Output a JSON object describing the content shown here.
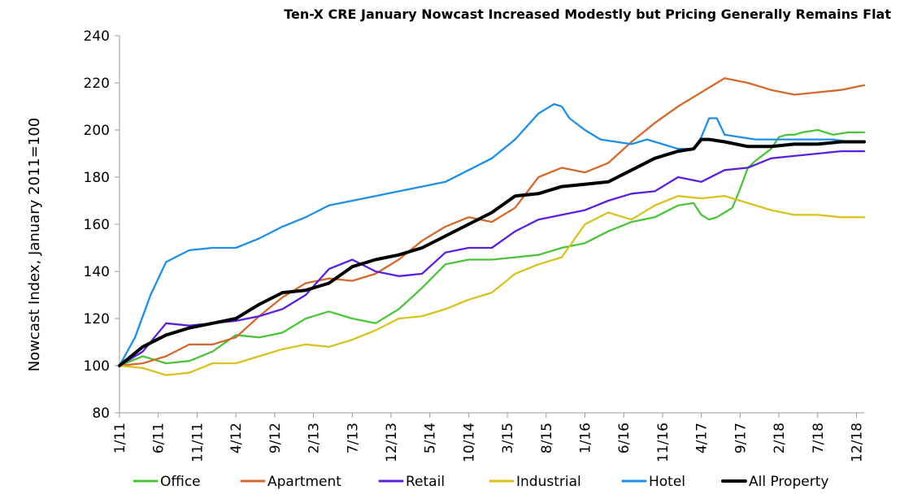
{
  "chart_data": {
    "type": "line",
    "title": "Ten-X CRE January Nowcast Increased Modestly but Pricing Generally Remains Flat",
    "xlabel": "",
    "ylabel": "Nowcast Index, January 2011=100",
    "ylim": [
      80,
      240
    ],
    "yticks": [
      80,
      100,
      120,
      140,
      160,
      180,
      200,
      220,
      240
    ],
    "x_index_range": [
      0,
      96
    ],
    "xtick_labels": [
      "1/11",
      "6/11",
      "11/11",
      "4/12",
      "9/12",
      "2/13",
      "7/13",
      "12/13",
      "5/14",
      "10/14",
      "3/15",
      "8/15",
      "1/16",
      "6/16",
      "11/16",
      "4/17",
      "9/17",
      "2/18",
      "7/18",
      "12/18"
    ],
    "xtick_step_months": 5,
    "grid": false,
    "legend_position": "bottom",
    "series": [
      {
        "name": "Office",
        "color": "#4CC43A",
        "x": [
          0,
          3,
          6,
          9,
          12,
          15,
          18,
          21,
          24,
          27,
          30,
          33,
          36,
          39,
          42,
          45,
          48,
          51,
          54,
          57,
          60,
          63,
          66,
          69,
          72,
          74,
          75,
          76,
          77,
          79,
          80,
          81,
          82,
          84,
          85,
          86,
          87,
          88,
          90,
          92,
          94,
          96
        ],
        "values": [
          100,
          104,
          101,
          102,
          106,
          113,
          112,
          114,
          120,
          123,
          120,
          118,
          124,
          133,
          143,
          145,
          145,
          146,
          147,
          150,
          152,
          157,
          161,
          163,
          168,
          169,
          164,
          162,
          163,
          167,
          175,
          184,
          187,
          192,
          197,
          198,
          198,
          199,
          200,
          198,
          199,
          199
        ]
      },
      {
        "name": "Apartment",
        "color": "#D3692B",
        "x": [
          0,
          3,
          6,
          9,
          12,
          15,
          18,
          21,
          24,
          27,
          30,
          33,
          36,
          39,
          42,
          45,
          48,
          51,
          54,
          57,
          60,
          63,
          66,
          69,
          72,
          75,
          78,
          81,
          84,
          87,
          90,
          93,
          96
        ],
        "values": [
          100,
          101,
          104,
          109,
          109,
          112,
          121,
          129,
          135,
          137,
          136,
          139,
          145,
          153,
          159,
          163,
          161,
          167,
          180,
          184,
          182,
          186,
          195,
          203,
          210,
          216,
          222,
          220,
          217,
          215,
          216,
          217,
          219
        ]
      },
      {
        "name": "Retail",
        "color": "#5B1FE0",
        "x": [
          0,
          3,
          6,
          9,
          12,
          15,
          18,
          21,
          24,
          27,
          30,
          33,
          36,
          39,
          42,
          45,
          48,
          51,
          54,
          57,
          60,
          63,
          66,
          69,
          72,
          75,
          78,
          81,
          84,
          87,
          90,
          93,
          96
        ],
        "values": [
          100,
          106,
          118,
          117,
          118,
          119,
          121,
          124,
          130,
          141,
          145,
          140,
          138,
          139,
          148,
          150,
          150,
          157,
          162,
          164,
          166,
          170,
          173,
          174,
          180,
          178,
          183,
          184,
          188,
          189,
          190,
          191,
          191
        ]
      },
      {
        "name": "Industrial",
        "color": "#D8C21F",
        "x": [
          0,
          3,
          6,
          9,
          12,
          15,
          18,
          21,
          24,
          27,
          30,
          33,
          36,
          39,
          42,
          45,
          48,
          51,
          54,
          57,
          60,
          63,
          66,
          69,
          72,
          75,
          78,
          81,
          84,
          87,
          90,
          93,
          96
        ],
        "values": [
          100,
          99,
          96,
          97,
          101,
          101,
          104,
          107,
          109,
          108,
          111,
          115,
          120,
          121,
          124,
          128,
          131,
          139,
          143,
          146,
          160,
          165,
          162,
          168,
          172,
          171,
          172,
          169,
          166,
          164,
          164,
          163,
          163
        ]
      },
      {
        "name": "Hotel",
        "color": "#1E8FE6",
        "x": [
          0,
          2,
          4,
          6,
          9,
          12,
          15,
          18,
          21,
          24,
          27,
          30,
          33,
          36,
          39,
          42,
          45,
          48,
          51,
          54,
          56,
          57,
          58,
          60,
          62,
          64,
          66,
          68,
          70,
          72,
          74,
          75,
          76,
          77,
          78,
          80,
          82,
          84,
          86,
          88,
          90,
          92,
          94,
          96
        ],
        "values": [
          100,
          112,
          130,
          144,
          149,
          150,
          150,
          154,
          159,
          163,
          168,
          170,
          172,
          174,
          176,
          178,
          183,
          188,
          196,
          207,
          211,
          210,
          205,
          200,
          196,
          195,
          194,
          196,
          194,
          192,
          192,
          197,
          205,
          205,
          198,
          197,
          196,
          196,
          196,
          196,
          196,
          196,
          195,
          195
        ]
      },
      {
        "name": "All Property",
        "color": "#000000",
        "x": [
          0,
          3,
          6,
          9,
          12,
          15,
          18,
          21,
          24,
          27,
          30,
          33,
          36,
          39,
          42,
          45,
          48,
          51,
          54,
          57,
          60,
          63,
          66,
          69,
          72,
          74,
          75,
          76,
          78,
          81,
          84,
          87,
          90,
          93,
          96
        ],
        "values": [
          100,
          108,
          113,
          116,
          118,
          120,
          126,
          131,
          132,
          135,
          142,
          145,
          147,
          150,
          155,
          160,
          165,
          172,
          173,
          176,
          177,
          178,
          183,
          188,
          191,
          192,
          196,
          196,
          195,
          193,
          193,
          194,
          194,
          195,
          195
        ]
      }
    ]
  }
}
